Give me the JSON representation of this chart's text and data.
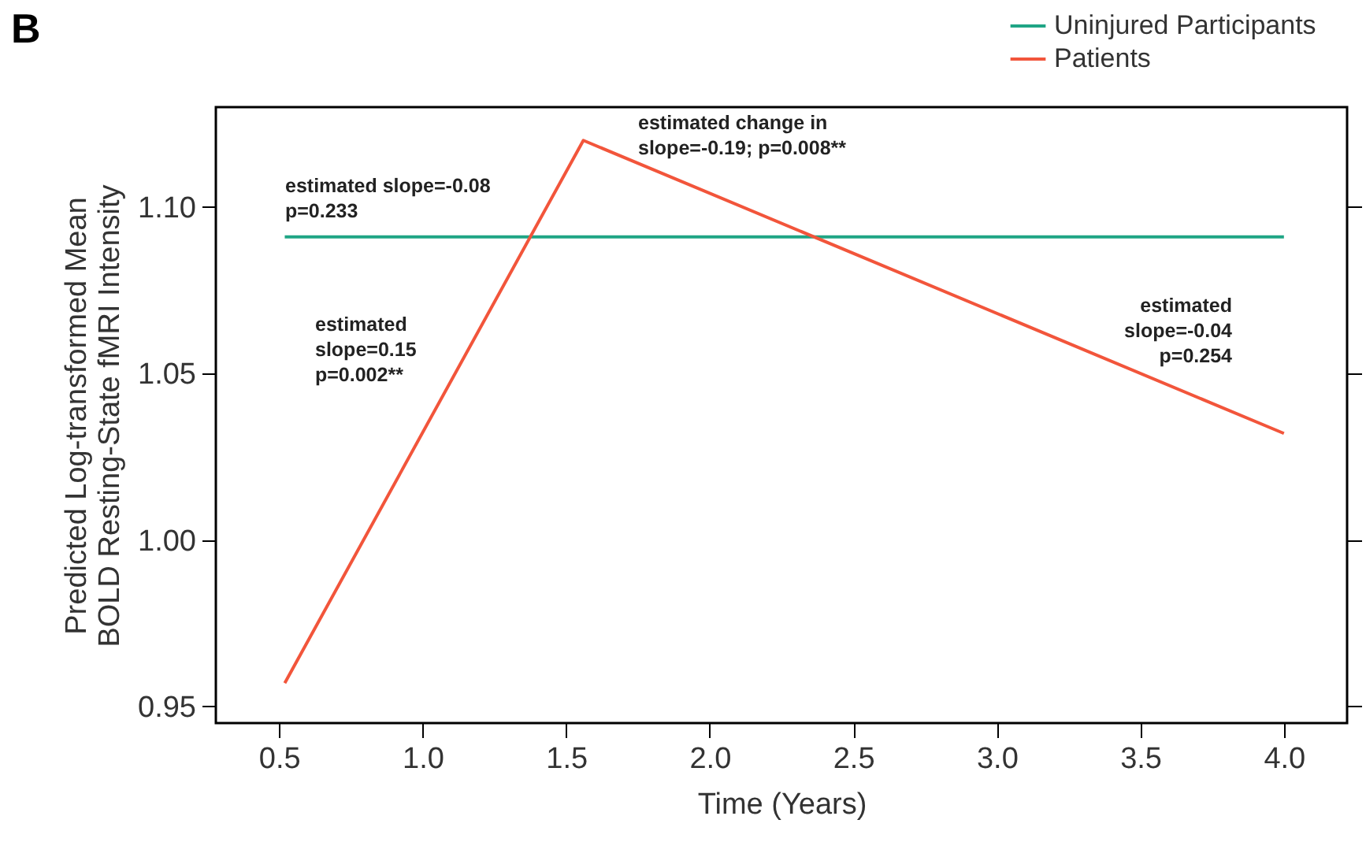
{
  "chart_data": {
    "type": "line",
    "title": "B",
    "xlabel": "Time (Years)",
    "ylabel": "Predicted Log-transformed Mean\nBOLD Resting-State fMRI Intensity",
    "series": [
      {
        "name": "Uninjured Participants",
        "color": "#1fa585",
        "x": [
          0.52,
          4.0
        ],
        "values": [
          1.091,
          1.091
        ]
      },
      {
        "name": "Patients",
        "color": "#f2553b",
        "x": [
          0.52,
          1.56,
          4.0
        ],
        "values": [
          0.957,
          1.12,
          1.032
        ]
      }
    ],
    "xlim": [
      0.28,
      4.22
    ],
    "xticks": [
      0.5,
      {
        "value": 1,
        "label": "1.0"
      },
      1.5,
      {
        "value": 2,
        "label": "2.0"
      },
      2.5,
      {
        "value": 3,
        "label": "3.0"
      },
      3.5,
      {
        "value": 4,
        "label": "4.0"
      }
    ],
    "ylim": [
      0.945,
      1.13
    ],
    "yticks": [
      0.95,
      {
        "value": 1,
        "label": "1.00"
      },
      1.05,
      {
        "value": 1.1,
        "label": "1.10"
      }
    ],
    "annotations": [
      "estimated slope=-0.08\np=0.233",
      "estimated change in\nslope=-0.19; p=0.008**",
      "estimated\nslope=0.15\np=0.002**",
      "estimated\nslope=-0.04\np=0.254"
    ],
    "legend": "top right",
    "grid": false,
    "marker": "none",
    "line_style": "solid"
  }
}
